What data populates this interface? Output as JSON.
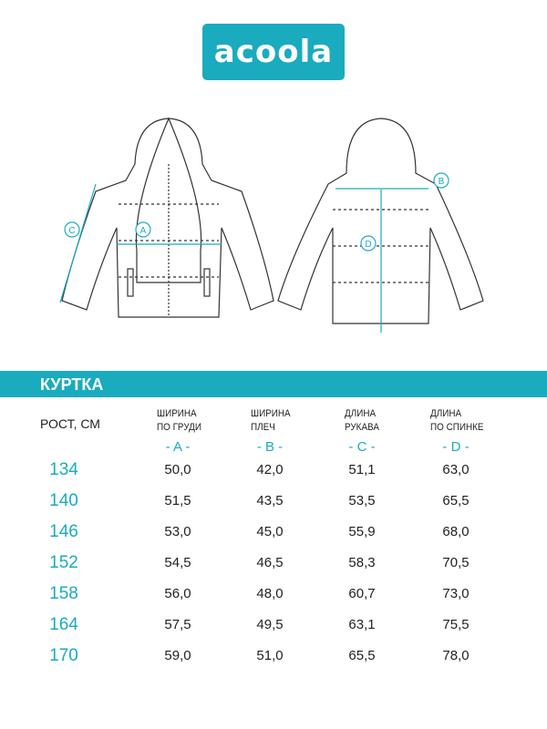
{
  "brand": {
    "logo_text": "acoola",
    "color": "#1aabbf"
  },
  "diagram": {
    "markers": [
      "A",
      "B",
      "C",
      "D"
    ]
  },
  "section_title": "КУРТКА",
  "table": {
    "size_header": "РОСТ, СМ",
    "columns": [
      {
        "line1": "ШИРИНА",
        "line2": "ПО ГРУДИ",
        "letter": "- A -"
      },
      {
        "line1": "ШИРИНА",
        "line2": "ПЛЕЧ",
        "letter": "- B -"
      },
      {
        "line1": "ДЛИНА",
        "line2": "РУКАВА",
        "letter": "- C -"
      },
      {
        "line1": "ДЛИНА",
        "line2": "ПО СПИНКЕ",
        "letter": "- D -"
      }
    ],
    "rows": [
      {
        "size": "134",
        "values": [
          "50,0",
          "42,0",
          "51,1",
          "63,0"
        ]
      },
      {
        "size": "140",
        "values": [
          "51,5",
          "43,5",
          "53,5",
          "65,5"
        ]
      },
      {
        "size": "146",
        "values": [
          "53,0",
          "45,0",
          "55,9",
          "68,0"
        ]
      },
      {
        "size": "152",
        "values": [
          "54,5",
          "46,5",
          "58,3",
          "70,5"
        ]
      },
      {
        "size": "158",
        "values": [
          "56,0",
          "48,0",
          "60,7",
          "73,0"
        ]
      },
      {
        "size": "164",
        "values": [
          "57,5",
          "49,5",
          "63,1",
          "75,5"
        ]
      },
      {
        "size": "170",
        "values": [
          "59,0",
          "51,0",
          "65,5",
          "78,0"
        ]
      }
    ]
  }
}
